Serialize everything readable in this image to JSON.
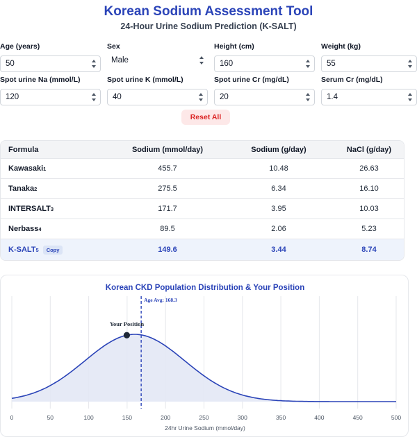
{
  "header": {
    "title": "Korean Sodium Assessment Tool",
    "subtitle": "24-Hour Urine Sodium Prediction (K-SALT)"
  },
  "inputs": {
    "age": {
      "label": "Age (years)",
      "value": "50"
    },
    "sex": {
      "label": "Sex",
      "value": "Male"
    },
    "height": {
      "label": "Height (cm)",
      "value": "160"
    },
    "weight": {
      "label": "Weight (kg)",
      "value": "55"
    },
    "spot_na": {
      "label": "Spot urine Na (mmol/L)",
      "value": "120"
    },
    "spot_k": {
      "label": "Spot urine K (mmol/L)",
      "value": "40"
    },
    "spot_cr": {
      "label": "Spot urine Cr (mg/dL)",
      "value": "20"
    },
    "serum_cr": {
      "label": "Serum Cr (mg/dL)",
      "value": "1.4"
    }
  },
  "reset_label": "Reset All",
  "table": {
    "headers": [
      "Formula",
      "Sodium (mmol/day)",
      "Sodium (g/day)",
      "NaCl (g/day)"
    ],
    "rows": [
      {
        "name": "Kawasaki",
        "ref": "1",
        "sodium_mmol": "455.7",
        "sodium_g": "10.48",
        "nacl_g": "26.63"
      },
      {
        "name": "Tanaka",
        "ref": "2",
        "sodium_mmol": "275.5",
        "sodium_g": "6.34",
        "nacl_g": "16.10"
      },
      {
        "name": "INTERSALT",
        "ref": "3",
        "sodium_mmol": "171.7",
        "sodium_g": "3.95",
        "nacl_g": "10.03"
      },
      {
        "name": "Nerbass",
        "ref": "4",
        "sodium_mmol": "89.5",
        "sodium_g": "2.06",
        "nacl_g": "5.23"
      },
      {
        "name": "K-SALT",
        "ref": "5",
        "sodium_mmol": "149.6",
        "sodium_g": "3.44",
        "nacl_g": "8.74",
        "copy_label": "Copy"
      }
    ]
  },
  "chart_data": {
    "type": "area",
    "title": "Korean CKD Population Distribution & Your Position",
    "xlabel": "24hr Urine Sodium (mmol/day)",
    "xlim": [
      0,
      500
    ],
    "x_ticks": [
      0,
      50,
      100,
      150,
      200,
      250,
      300,
      350,
      400,
      450,
      500
    ],
    "distribution": {
      "mean": 160,
      "sd": 65
    },
    "your_position": {
      "x": 149.6,
      "label": "Your Position"
    },
    "age_avg": {
      "x": 168.3,
      "label": "Age Avg: 168.3"
    },
    "grid": true,
    "colors": {
      "line": "#2b44b8",
      "fill": "#e3e8f5",
      "marker": "#1f2937"
    }
  }
}
